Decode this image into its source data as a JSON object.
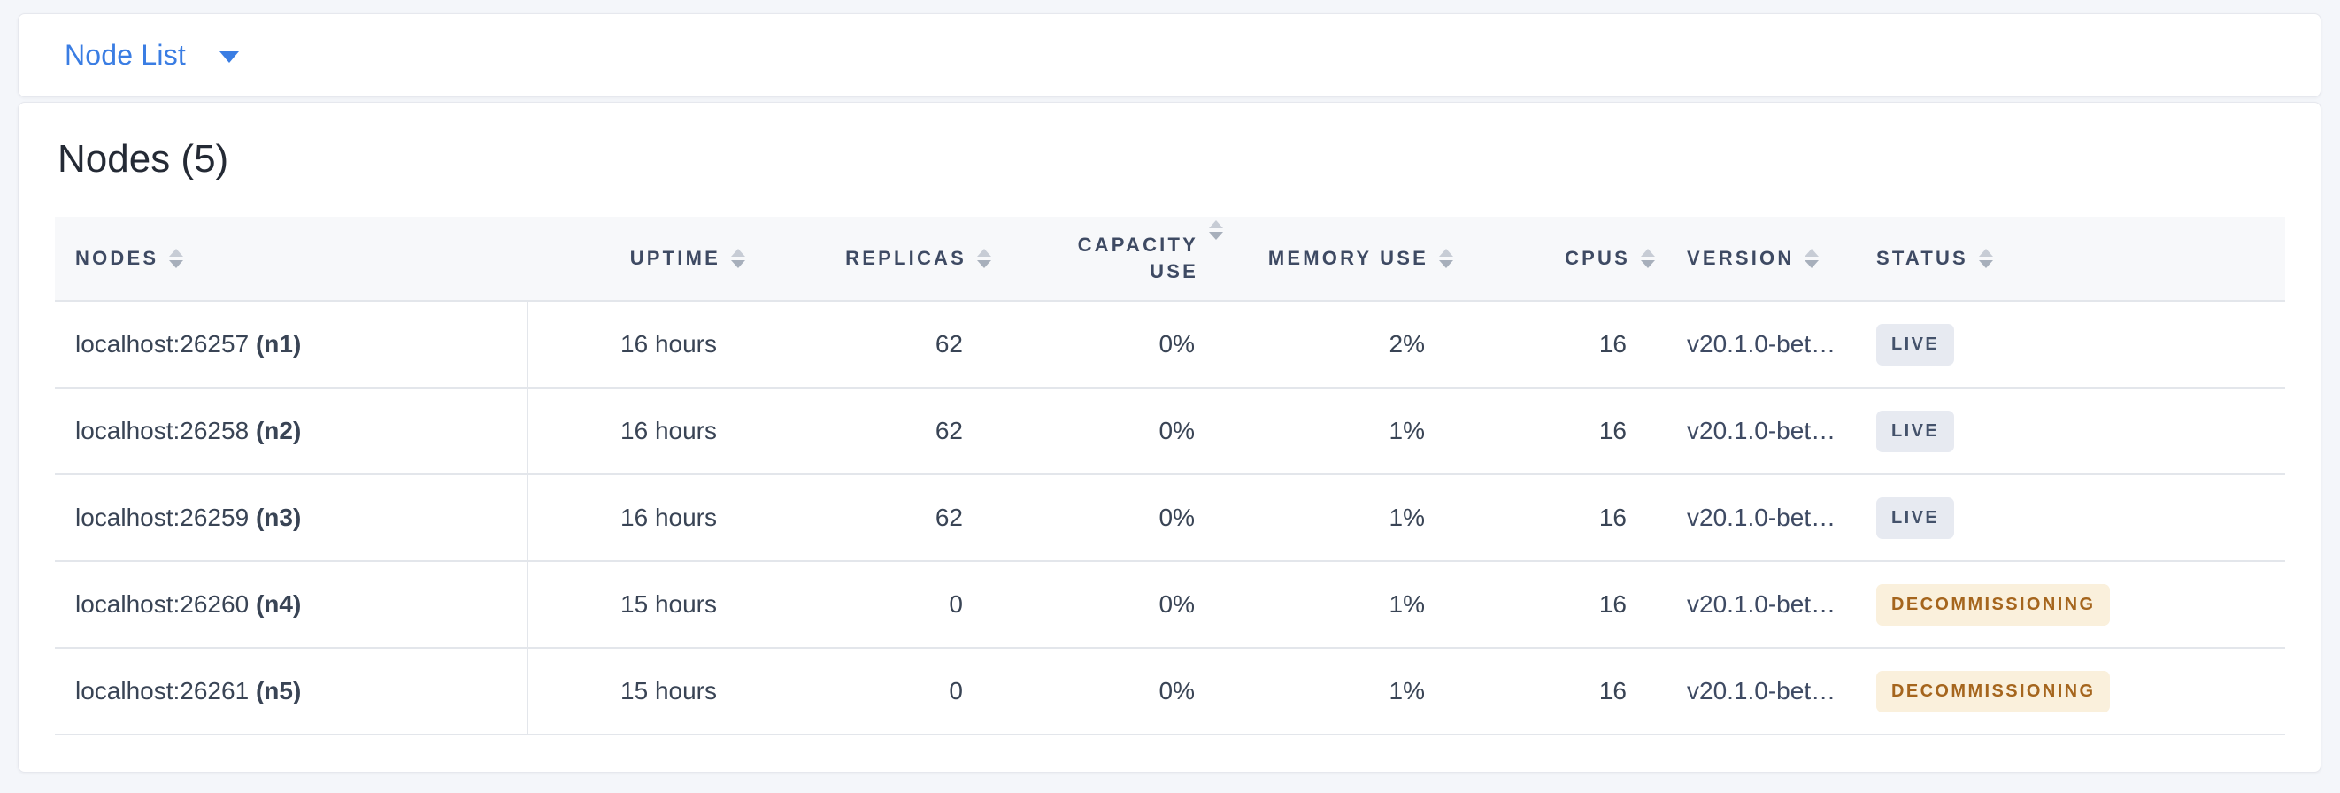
{
  "view_selector": {
    "label": "Node List",
    "caret_icon": "chevron-down",
    "accent_color": "#3A7DE3"
  },
  "panel": {
    "title": "Nodes (5)"
  },
  "table": {
    "columns": {
      "nodes": "NODES",
      "uptime": "UPTIME",
      "replicas": "REPLICAS",
      "capacity_use": "CAPACITY USE",
      "memory_use": "MEMORY USE",
      "cpus": "CPUS",
      "version": "VERSION",
      "status": "STATUS"
    },
    "rows": [
      {
        "address": "localhost:26257",
        "id": "(n1)",
        "uptime": "16 hours",
        "replicas": "62",
        "capacity_use": "0%",
        "memory_use": "2%",
        "cpus": "16",
        "version": "v20.1.0-bet…",
        "status": "LIVE",
        "status_type": "live"
      },
      {
        "address": "localhost:26258",
        "id": "(n2)",
        "uptime": "16 hours",
        "replicas": "62",
        "capacity_use": "0%",
        "memory_use": "1%",
        "cpus": "16",
        "version": "v20.1.0-bet…",
        "status": "LIVE",
        "status_type": "live"
      },
      {
        "address": "localhost:26259",
        "id": "(n3)",
        "uptime": "16 hours",
        "replicas": "62",
        "capacity_use": "0%",
        "memory_use": "1%",
        "cpus": "16",
        "version": "v20.1.0-bet…",
        "status": "LIVE",
        "status_type": "live"
      },
      {
        "address": "localhost:26260",
        "id": "(n4)",
        "uptime": "15 hours",
        "replicas": "0",
        "capacity_use": "0%",
        "memory_use": "1%",
        "cpus": "16",
        "version": "v20.1.0-bet…",
        "status": "DECOMMISSIONING",
        "status_type": "decommissioning"
      },
      {
        "address": "localhost:26261",
        "id": "(n5)",
        "uptime": "15 hours",
        "replicas": "0",
        "capacity_use": "0%",
        "memory_use": "1%",
        "cpus": "16",
        "version": "v20.1.0-bet…",
        "status": "DECOMMISSIONING",
        "status_type": "decommissioning"
      }
    ],
    "status_colors": {
      "live": {
        "background": "#E7EAF1",
        "text": "#44526B"
      },
      "decommissioning": {
        "background": "#FAF0DC",
        "text": "#A5651D"
      }
    }
  }
}
